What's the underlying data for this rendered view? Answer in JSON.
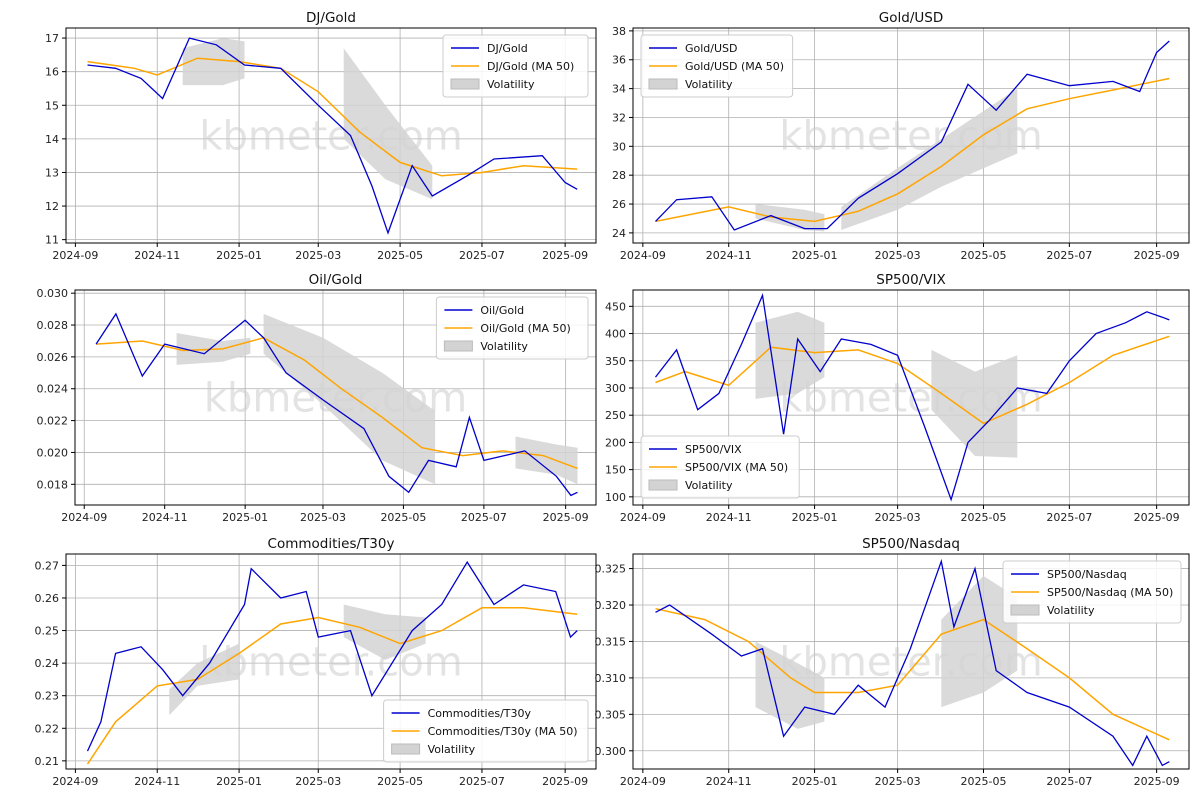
{
  "watermark": "kbmeter.com",
  "colors": {
    "series": "#0000cd",
    "ma": "#ffa500",
    "vol": "#d3d3d3",
    "grid": "#b0b0b0"
  },
  "chart_data": [
    {
      "type": "line",
      "title": "DJ/Gold",
      "legend": "top-right",
      "x_ticks": [
        "2024-09",
        "2024-11",
        "2025-01",
        "2025-03",
        "2025-05",
        "2025-07",
        "2025-09"
      ],
      "y_ticks": [
        "11",
        "12",
        "13",
        "14",
        "15",
        "16",
        "17"
      ],
      "ylim": [
        10.9,
        17.3
      ],
      "series": [
        {
          "name": "DJ/Gold",
          "kind": "line",
          "x": [
            "2024-09-10",
            "2024-10-01",
            "2024-10-20",
            "2024-11-05",
            "2024-11-25",
            "2024-12-15",
            "2025-01-05",
            "2025-02-01",
            "2025-03-01",
            "2025-03-25",
            "2025-04-10",
            "2025-04-22",
            "2025-05-10",
            "2025-05-25",
            "2025-06-20",
            "2025-07-10",
            "2025-08-15",
            "2025-09-01",
            "2025-09-10"
          ],
          "y": [
            16.2,
            16.1,
            15.8,
            15.2,
            17.0,
            16.8,
            16.2,
            16.1,
            15.0,
            14.1,
            12.6,
            11.2,
            13.2,
            12.3,
            12.9,
            13.4,
            13.5,
            12.7,
            12.5
          ]
        },
        {
          "name": "DJ/Gold (MA 50)",
          "kind": "ma",
          "x": [
            "2024-09-10",
            "2024-10-15",
            "2024-11-01",
            "2024-12-01",
            "2025-01-01",
            "2025-02-01",
            "2025-03-01",
            "2025-04-01",
            "2025-05-01",
            "2025-06-01",
            "2025-07-01",
            "2025-08-01",
            "2025-09-10"
          ],
          "y": [
            16.3,
            16.1,
            15.9,
            16.4,
            16.3,
            16.1,
            15.4,
            14.2,
            13.3,
            12.9,
            13.0,
            13.2,
            13.1
          ]
        },
        {
          "name": "Volatility",
          "kind": "band",
          "x": [
            "2024-11-20",
            "2024-12-20",
            "2025-01-05"
          ],
          "upper": [
            16.7,
            17.0,
            16.9
          ],
          "lower": [
            15.6,
            15.6,
            15.8
          ]
        },
        {
          "kind": "band",
          "x": [
            "2025-03-20",
            "2025-04-20",
            "2025-05-25"
          ],
          "upper": [
            16.7,
            15.0,
            13.2
          ],
          "lower": [
            14.0,
            12.8,
            12.2
          ]
        }
      ]
    },
    {
      "type": "line",
      "title": "Gold/USD",
      "legend": "top-left",
      "x_ticks": [
        "2024-09",
        "2024-11",
        "2025-01",
        "2025-03",
        "2025-05",
        "2025-07",
        "2025-09"
      ],
      "y_ticks": [
        "24",
        "26",
        "28",
        "30",
        "32",
        "34",
        "36",
        "38"
      ],
      "ylim": [
        23.3,
        38.2
      ],
      "series": [
        {
          "name": "Gold/USD",
          "kind": "line",
          "x": [
            "2024-09-10",
            "2024-09-25",
            "2024-10-20",
            "2024-11-05",
            "2024-12-01",
            "2024-12-25",
            "2025-01-10",
            "2025-02-01",
            "2025-03-01",
            "2025-04-01",
            "2025-04-20",
            "2025-05-10",
            "2025-06-01",
            "2025-07-01",
            "2025-08-01",
            "2025-08-20",
            "2025-09-01",
            "2025-09-10"
          ],
          "y": [
            24.8,
            26.3,
            26.5,
            24.2,
            25.2,
            24.3,
            24.3,
            26.4,
            28.1,
            30.3,
            34.3,
            32.5,
            35.0,
            34.2,
            34.5,
            33.8,
            36.5,
            37.3
          ]
        },
        {
          "name": "Gold/USD (MA 50)",
          "kind": "ma",
          "x": [
            "2024-09-10",
            "2024-11-01",
            "2024-12-01",
            "2025-01-01",
            "2025-02-01",
            "2025-03-01",
            "2025-04-01",
            "2025-05-01",
            "2025-06-01",
            "2025-07-01",
            "2025-08-01",
            "2025-09-10"
          ],
          "y": [
            24.8,
            25.8,
            25.1,
            24.8,
            25.5,
            26.7,
            28.6,
            30.8,
            32.6,
            33.3,
            33.9,
            34.7
          ]
        },
        {
          "name": "Volatility",
          "kind": "band",
          "x": [
            "2024-11-20",
            "2024-12-25",
            "2025-01-08"
          ],
          "upper": [
            26.0,
            25.6,
            25.3
          ],
          "lower": [
            25.0,
            24.2,
            24.1
          ]
        },
        {
          "kind": "band",
          "x": [
            "2025-01-20",
            "2025-03-01",
            "2025-04-01",
            "2025-05-25"
          ],
          "upper": [
            25.8,
            28.5,
            30.5,
            34.0
          ],
          "lower": [
            24.2,
            25.6,
            27.2,
            29.5
          ]
        }
      ]
    },
    {
      "type": "line",
      "title": "Oil/Gold",
      "legend": "top-right",
      "x_ticks": [
        "2024-09",
        "2024-11",
        "2025-01",
        "2025-03",
        "2025-05",
        "2025-07",
        "2025-09"
      ],
      "y_ticks": [
        "0.018",
        "0.020",
        "0.022",
        "0.024",
        "0.026",
        "0.028",
        "0.030"
      ],
      "ylim": [
        0.0167,
        0.0302
      ],
      "series": [
        {
          "name": "Oil/Gold",
          "kind": "line",
          "x": [
            "2024-09-10",
            "2024-09-25",
            "2024-10-15",
            "2024-11-01",
            "2024-12-01",
            "2025-01-01",
            "2025-01-15",
            "2025-02-01",
            "2025-03-01",
            "2025-04-01",
            "2025-04-20",
            "2025-05-05",
            "2025-05-20",
            "2025-06-10",
            "2025-06-20",
            "2025-07-01",
            "2025-08-01",
            "2025-08-25",
            "2025-09-05",
            "2025-09-10"
          ],
          "y": [
            0.0268,
            0.0287,
            0.0248,
            0.0268,
            0.0262,
            0.0283,
            0.0272,
            0.025,
            0.0233,
            0.0215,
            0.0185,
            0.0175,
            0.0195,
            0.0191,
            0.0222,
            0.0195,
            0.0201,
            0.0185,
            0.0173,
            0.0175
          ]
        },
        {
          "name": "Oil/Gold (MA 50)",
          "kind": "ma",
          "x": [
            "2024-09-10",
            "2024-10-15",
            "2024-11-15",
            "2024-12-15",
            "2025-01-15",
            "2025-02-15",
            "2025-03-15",
            "2025-04-15",
            "2025-05-15",
            "2025-06-15",
            "2025-07-15",
            "2025-08-15",
            "2025-09-10"
          ],
          "y": [
            0.0268,
            0.027,
            0.0264,
            0.0265,
            0.0272,
            0.0258,
            0.024,
            0.0222,
            0.0203,
            0.0198,
            0.0201,
            0.0198,
            0.019
          ]
        },
        {
          "name": "Volatility",
          "kind": "band",
          "x": [
            "2024-11-10",
            "2024-12-15",
            "2025-01-05"
          ],
          "upper": [
            0.0275,
            0.027,
            0.0272
          ],
          "lower": [
            0.0255,
            0.0257,
            0.0262
          ]
        },
        {
          "kind": "band",
          "x": [
            "2025-01-15",
            "2025-03-01",
            "2025-04-15",
            "2025-05-25"
          ],
          "upper": [
            0.0287,
            0.0272,
            0.025,
            0.0226
          ],
          "lower": [
            0.0262,
            0.023,
            0.0195,
            0.018
          ]
        },
        {
          "kind": "band",
          "x": [
            "2025-07-25",
            "2025-08-25",
            "2025-09-10"
          ],
          "upper": [
            0.021,
            0.0205,
            0.0203
          ],
          "lower": [
            0.019,
            0.0186,
            0.018
          ]
        }
      ]
    },
    {
      "type": "line",
      "title": "SP500/VIX",
      "legend": "bottom-left",
      "x_ticks": [
        "2024-09",
        "2024-11",
        "2025-01",
        "2025-03",
        "2025-05",
        "2025-07",
        "2025-09"
      ],
      "y_ticks": [
        "100",
        "150",
        "200",
        "250",
        "300",
        "350",
        "400",
        "450"
      ],
      "ylim": [
        85,
        480
      ],
      "series": [
        {
          "name": "SP500/VIX",
          "kind": "line",
          "x": [
            "2024-09-10",
            "2024-09-25",
            "2024-10-10",
            "2024-10-25",
            "2024-11-10",
            "2024-11-25",
            "2024-12-10",
            "2024-12-20",
            "2025-01-05",
            "2025-01-20",
            "2025-02-10",
            "2025-03-01",
            "2025-03-20",
            "2025-04-08",
            "2025-04-20",
            "2025-05-05",
            "2025-05-25",
            "2025-06-15",
            "2025-07-01",
            "2025-07-20",
            "2025-08-10",
            "2025-08-25",
            "2025-09-05",
            "2025-09-10"
          ],
          "y": [
            320,
            370,
            260,
            290,
            380,
            470,
            215,
            390,
            330,
            390,
            380,
            360,
            230,
            95,
            200,
            240,
            300,
            290,
            350,
            400,
            420,
            440,
            430,
            425
          ]
        },
        {
          "name": "SP500/VIX (MA 50)",
          "kind": "ma",
          "x": [
            "2024-09-10",
            "2024-10-01",
            "2024-11-01",
            "2024-12-01",
            "2025-01-01",
            "2025-02-01",
            "2025-03-01",
            "2025-04-01",
            "2025-05-01",
            "2025-06-01",
            "2025-07-01",
            "2025-08-01",
            "2025-09-10"
          ],
          "y": [
            310,
            330,
            305,
            375,
            365,
            370,
            345,
            290,
            235,
            270,
            310,
            360,
            395
          ]
        },
        {
          "name": "Volatility",
          "kind": "band",
          "x": [
            "2024-11-20",
            "2024-12-20",
            "2025-01-08"
          ],
          "upper": [
            420,
            440,
            420
          ],
          "lower": [
            280,
            290,
            320
          ]
        },
        {
          "kind": "band",
          "x": [
            "2025-03-25",
            "2025-04-25",
            "2025-05-25"
          ],
          "upper": [
            370,
            330,
            360
          ],
          "lower": [
            260,
            175,
            172
          ]
        }
      ]
    },
    {
      "type": "line",
      "title": "Commodities/T30y",
      "legend": "bottom-right",
      "x_ticks": [
        "2024-09",
        "2024-11",
        "2025-01",
        "2025-03",
        "2025-05",
        "2025-07",
        "2025-09"
      ],
      "y_ticks": [
        "0.21",
        "0.22",
        "0.23",
        "0.24",
        "0.25",
        "0.26",
        "0.27"
      ],
      "ylim": [
        0.2075,
        0.2735
      ],
      "series": [
        {
          "name": "Commodities/T30y",
          "kind": "line",
          "x": [
            "2024-09-10",
            "2024-09-20",
            "2024-10-01",
            "2024-10-20",
            "2024-11-05",
            "2024-11-20",
            "2024-12-10",
            "2025-01-05",
            "2025-01-10",
            "2025-02-01",
            "2025-02-20",
            "2025-03-01",
            "2025-03-25",
            "2025-04-10",
            "2025-05-10",
            "2025-06-01",
            "2025-06-20",
            "2025-07-10",
            "2025-08-01",
            "2025-08-25",
            "2025-09-05",
            "2025-09-10"
          ],
          "y": [
            0.213,
            0.222,
            0.243,
            0.245,
            0.238,
            0.23,
            0.24,
            0.258,
            0.269,
            0.26,
            0.262,
            0.248,
            0.25,
            0.23,
            0.25,
            0.258,
            0.271,
            0.258,
            0.264,
            0.262,
            0.248,
            0.25
          ]
        },
        {
          "name": "Commodities/T30y (MA 50)",
          "kind": "ma",
          "x": [
            "2024-09-10",
            "2024-10-01",
            "2024-11-01",
            "2024-12-01",
            "2025-01-01",
            "2025-02-01",
            "2025-03-01",
            "2025-04-01",
            "2025-05-01",
            "2025-06-01",
            "2025-07-01",
            "2025-08-01",
            "2025-09-10"
          ],
          "y": [
            0.209,
            0.222,
            0.233,
            0.235,
            0.243,
            0.252,
            0.254,
            0.251,
            0.246,
            0.25,
            0.257,
            0.257,
            0.255
          ]
        },
        {
          "name": "Volatility",
          "kind": "band",
          "x": [
            "2024-11-10",
            "2024-12-01",
            "2025-01-01"
          ],
          "upper": [
            0.232,
            0.24,
            0.246
          ],
          "lower": [
            0.224,
            0.233,
            0.235
          ]
        },
        {
          "kind": "band",
          "x": [
            "2025-03-20",
            "2025-04-20",
            "2025-05-20"
          ],
          "upper": [
            0.258,
            0.255,
            0.254
          ],
          "lower": [
            0.248,
            0.241,
            0.246
          ]
        }
      ]
    },
    {
      "type": "line",
      "title": "SP500/Nasdaq",
      "legend": "top-right",
      "x_ticks": [
        "2024-09",
        "2024-11",
        "2025-01",
        "2025-03",
        "2025-05",
        "2025-07",
        "2025-09"
      ],
      "y_ticks": [
        "0.300",
        "0.305",
        "0.310",
        "0.315",
        "0.320",
        "0.325"
      ],
      "ylim": [
        0.2975,
        0.327
      ],
      "series": [
        {
          "name": "SP500/Nasdaq",
          "kind": "line",
          "x": [
            "2024-09-10",
            "2024-09-20",
            "2024-10-20",
            "2024-11-10",
            "2024-11-25",
            "2024-12-10",
            "2024-12-25",
            "2025-01-15",
            "2025-02-01",
            "2025-02-20",
            "2025-03-10",
            "2025-04-01",
            "2025-04-10",
            "2025-04-25",
            "2025-05-10",
            "2025-06-01",
            "2025-07-01",
            "2025-08-01",
            "2025-08-15",
            "2025-08-25",
            "2025-09-05",
            "2025-09-10"
          ],
          "y": [
            0.319,
            0.32,
            0.316,
            0.313,
            0.314,
            0.302,
            0.306,
            0.305,
            0.309,
            0.306,
            0.314,
            0.326,
            0.317,
            0.325,
            0.311,
            0.308,
            0.306,
            0.302,
            0.298,
            0.302,
            0.298,
            0.2985
          ]
        },
        {
          "name": "SP500/Nasdaq (MA 50)",
          "kind": "ma",
          "x": [
            "2024-09-10",
            "2024-10-15",
            "2024-11-15",
            "2024-12-15",
            "2025-01-01",
            "2025-02-01",
            "2025-03-01",
            "2025-04-01",
            "2025-05-01",
            "2025-06-01",
            "2025-07-01",
            "2025-08-01",
            "2025-09-10"
          ],
          "y": [
            0.3195,
            0.318,
            0.315,
            0.31,
            0.308,
            0.308,
            0.309,
            0.316,
            0.318,
            0.314,
            0.31,
            0.305,
            0.3015
          ]
        },
        {
          "name": "Volatility",
          "kind": "band",
          "x": [
            "2024-11-20",
            "2024-12-20",
            "2025-01-08"
          ],
          "upper": [
            0.315,
            0.312,
            0.31
          ],
          "lower": [
            0.306,
            0.303,
            0.304
          ]
        },
        {
          "kind": "band",
          "x": [
            "2025-04-01",
            "2025-05-01",
            "2025-05-25"
          ],
          "upper": [
            0.318,
            0.324,
            0.321
          ],
          "lower": [
            0.306,
            0.308,
            0.311
          ]
        }
      ]
    }
  ]
}
